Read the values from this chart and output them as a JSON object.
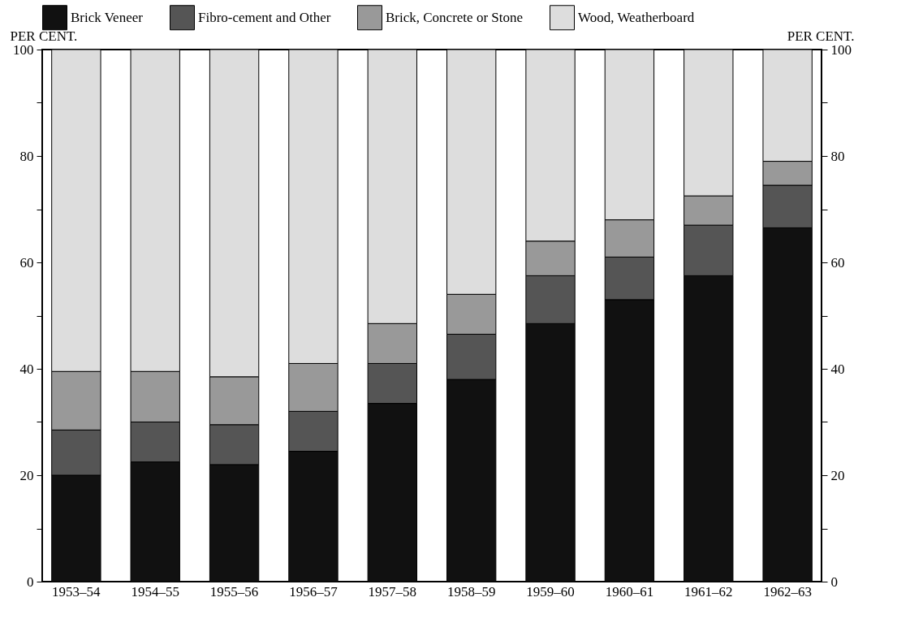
{
  "chart_data": {
    "type": "bar",
    "stacked": true,
    "ylabel": "PER CENT.",
    "y2label": "PER CENT.",
    "categories": [
      "1953–54",
      "1954–55",
      "1955–56",
      "1956–57",
      "1957–58",
      "1958–59",
      "1959–60",
      "1960–61",
      "1961–62",
      "1962–63"
    ],
    "series": [
      {
        "name": "Brick Veneer",
        "color": "#111111",
        "values": [
          20,
          22.5,
          22,
          24.5,
          33.5,
          38,
          48.5,
          53,
          57.5,
          66.5
        ]
      },
      {
        "name": "Fibro-cement and Other",
        "color": "#555555",
        "values": [
          8.5,
          7.5,
          7.5,
          7.5,
          7.5,
          8.5,
          9,
          8,
          9.5,
          8
        ]
      },
      {
        "name": "Brick, Concrete or Stone",
        "color": "#999999",
        "values": [
          11,
          9.5,
          9,
          9,
          7.5,
          7.5,
          6.5,
          7,
          5.5,
          4.5
        ]
      },
      {
        "name": "Wood, Weatherboard",
        "color": "#dddddd",
        "values": [
          60.5,
          60.5,
          61.5,
          59,
          51.5,
          46,
          36,
          32,
          27.5,
          21
        ]
      }
    ],
    "ylim": [
      0,
      100
    ],
    "yticks": [
      0,
      {
        "value": 10,
        "label": null
      },
      20,
      {
        "value": 30,
        "label": null
      },
      40,
      {
        "value": 50,
        "label": null
      },
      60,
      {
        "value": 70,
        "label": null
      },
      80,
      {
        "value": 90,
        "label": null
      },
      100
    ],
    "y2lim": [
      0,
      100
    ],
    "y2ticks": [
      0,
      {
        "value": 10,
        "label": null
      },
      20,
      {
        "value": 30,
        "label": null
      },
      40,
      {
        "value": 50,
        "label": null
      },
      60,
      {
        "value": 70,
        "label": null
      },
      80,
      {
        "value": 90,
        "label": null
      },
      100
    ],
    "legend": "top",
    "grid": false
  }
}
